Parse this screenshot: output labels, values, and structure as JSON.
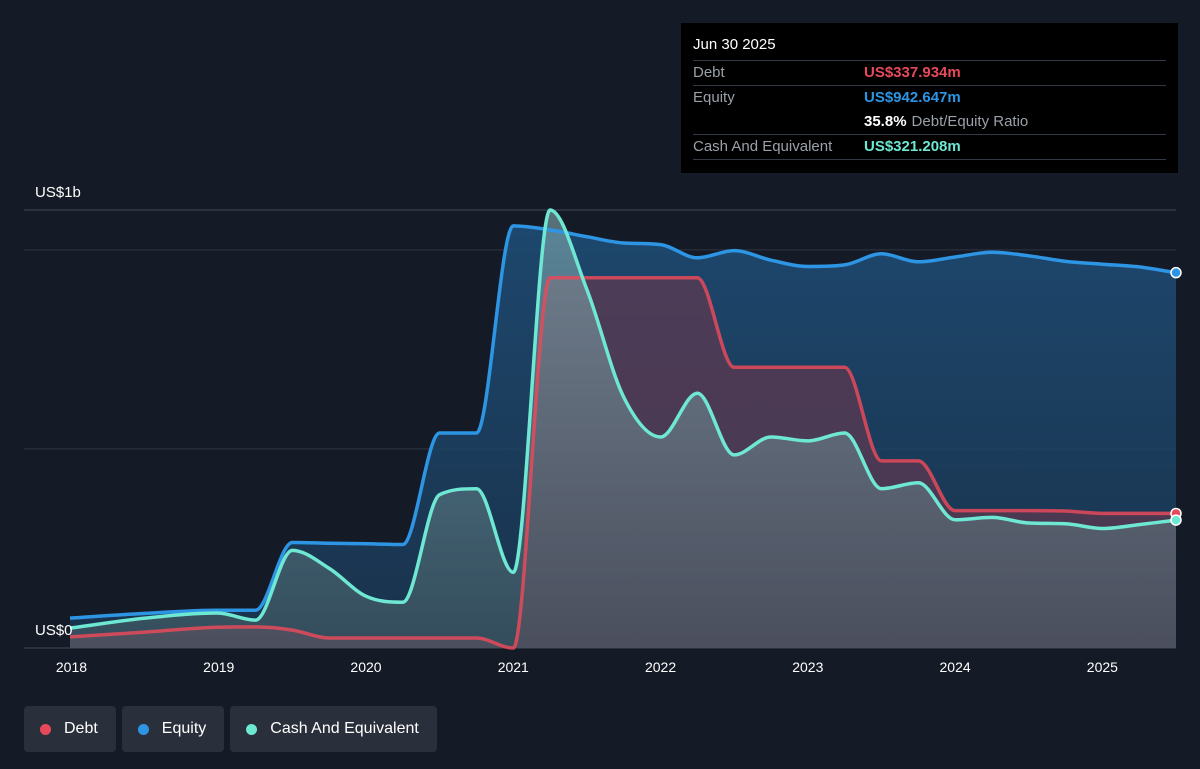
{
  "colors": {
    "debt": "#e64a5a",
    "equity": "#2d95e3",
    "cash": "#6ee7d3",
    "grid": "#2f3541",
    "background": "#151b26"
  },
  "tooltip": {
    "date": "Jun 30 2025",
    "rows": [
      {
        "label": "Debt",
        "value": "US$337.934m",
        "color": "#e64a5a"
      },
      {
        "label": "Equity",
        "value": "US$942.647m",
        "color": "#2d95e3"
      }
    ],
    "ratio_value": "35.8%",
    "ratio_label": "Debt/Equity Ratio",
    "cash_label": "Cash And Equivalent",
    "cash_value": "US$321.208m"
  },
  "legend": [
    {
      "label": "Debt",
      "color": "#e64a5a"
    },
    {
      "label": "Equity",
      "color": "#2d95e3"
    },
    {
      "label": "Cash And Equivalent",
      "color": "#6ee7d3"
    }
  ],
  "chart_data": {
    "type": "area",
    "y_unit": "US$ millions",
    "ylim": [
      0,
      1100
    ],
    "xlim": [
      2017.99,
      2025.5
    ],
    "y_tick_labels": [
      {
        "value": 1100,
        "label": "US$1b"
      },
      {
        "value": 0,
        "label": "US$0"
      }
    ],
    "gridlines": [
      1000,
      500
    ],
    "x_ticks": [
      2018,
      2019,
      2020,
      2021,
      2022,
      2023,
      2024,
      2025
    ],
    "x_tick_labels": [
      "2018",
      "2019",
      "2020",
      "2021",
      "2022",
      "2023",
      "2024",
      "2025"
    ],
    "legend_position": "bottom-left",
    "series": [
      {
        "name": "Equity",
        "color": "#2d95e3",
        "points": [
          [
            2017.99,
            75
          ],
          [
            2018.5,
            87
          ],
          [
            2018.99,
            95
          ],
          [
            2019.25,
            95
          ],
          [
            2019.5,
            265
          ],
          [
            2019.75,
            263
          ],
          [
            2020.0,
            262
          ],
          [
            2020.25,
            260
          ],
          [
            2020.5,
            540
          ],
          [
            2020.75,
            540
          ],
          [
            2021.0,
            1060
          ],
          [
            2021.25,
            1050
          ],
          [
            2021.5,
            1033
          ],
          [
            2021.75,
            1017
          ],
          [
            2022.0,
            1013
          ],
          [
            2022.25,
            980
          ],
          [
            2022.5,
            998
          ],
          [
            2022.75,
            974
          ],
          [
            2023.0,
            958
          ],
          [
            2023.25,
            962
          ],
          [
            2023.5,
            990
          ],
          [
            2023.75,
            970
          ],
          [
            2024.0,
            982
          ],
          [
            2024.25,
            994
          ],
          [
            2024.5,
            985
          ],
          [
            2024.75,
            971
          ],
          [
            2025.0,
            964
          ],
          [
            2025.25,
            957
          ],
          [
            2025.5,
            942.647
          ]
        ]
      },
      {
        "name": "Cash And Equivalent",
        "color": "#6ee7d3",
        "points": [
          [
            2017.99,
            50
          ],
          [
            2018.5,
            75
          ],
          [
            2018.99,
            88
          ],
          [
            2019.25,
            70
          ],
          [
            2019.5,
            245
          ],
          [
            2019.75,
            200
          ],
          [
            2020.0,
            130
          ],
          [
            2020.25,
            115
          ],
          [
            2020.5,
            385
          ],
          [
            2020.75,
            400
          ],
          [
            2021.0,
            190
          ],
          [
            2021.25,
            1100
          ],
          [
            2021.5,
            900
          ],
          [
            2021.75,
            630
          ],
          [
            2022.0,
            530
          ],
          [
            2022.25,
            640
          ],
          [
            2022.5,
            485
          ],
          [
            2022.75,
            530
          ],
          [
            2023.0,
            520
          ],
          [
            2023.25,
            540
          ],
          [
            2023.5,
            400
          ],
          [
            2023.75,
            415
          ],
          [
            2024.0,
            322
          ],
          [
            2024.25,
            328
          ],
          [
            2024.5,
            314
          ],
          [
            2024.75,
            312
          ],
          [
            2025.0,
            300
          ],
          [
            2025.25,
            310
          ],
          [
            2025.5,
            321.208
          ]
        ]
      },
      {
        "name": "Debt",
        "color": "#e64a5a",
        "points": [
          [
            2017.99,
            28
          ],
          [
            2018.5,
            40
          ],
          [
            2018.99,
            52
          ],
          [
            2019.25,
            53
          ],
          [
            2019.5,
            45
          ],
          [
            2019.75,
            25
          ],
          [
            2020.0,
            25
          ],
          [
            2020.25,
            25
          ],
          [
            2020.5,
            25
          ],
          [
            2020.75,
            25
          ],
          [
            2021.0,
            0
          ],
          [
            2021.25,
            930
          ],
          [
            2021.5,
            930
          ],
          [
            2021.75,
            930
          ],
          [
            2022.0,
            930
          ],
          [
            2022.25,
            930
          ],
          [
            2022.5,
            705
          ],
          [
            2022.75,
            705
          ],
          [
            2023.0,
            705
          ],
          [
            2023.25,
            705
          ],
          [
            2023.5,
            470
          ],
          [
            2023.75,
            470
          ],
          [
            2024.0,
            345
          ],
          [
            2024.25,
            345
          ],
          [
            2024.5,
            345
          ],
          [
            2024.75,
            344
          ],
          [
            2025.0,
            338
          ],
          [
            2025.25,
            338
          ],
          [
            2025.5,
            337.934
          ]
        ]
      }
    ]
  }
}
